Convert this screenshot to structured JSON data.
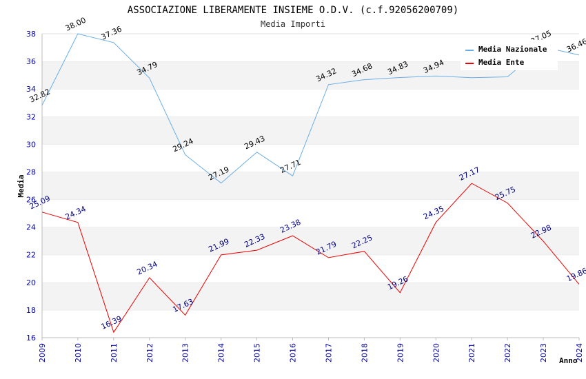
{
  "chart_data": {
    "type": "line",
    "title": "ASSOCIAZIONE LIBERAMENTE INSIEME O.D.V. (c.f.92056200709)",
    "subtitle": "Media Importi",
    "xlabel": "Anno",
    "ylabel": "Media",
    "categories": [
      "2009",
      "2010",
      "2011",
      "2012",
      "2013",
      "2014",
      "2015",
      "2016",
      "2017",
      "2018",
      "2019",
      "2020",
      "2021",
      "2022",
      "2023",
      "2024"
    ],
    "ylim": [
      16,
      38
    ],
    "yticks": [
      "16",
      "18",
      "20",
      "22",
      "24",
      "26",
      "28",
      "30",
      "32",
      "34",
      "36",
      "38"
    ],
    "grid": "horizontal bands",
    "legend_position": "top-right",
    "series": [
      {
        "name": "Media Nazionale",
        "color": "#6aaee6",
        "label_color": "#000000",
        "values": [
          32.82,
          38.0,
          37.36,
          34.79,
          29.24,
          27.19,
          29.43,
          27.71,
          34.32,
          34.68,
          34.83,
          34.94,
          34.82,
          34.88,
          37.05,
          36.46
        ],
        "labels": [
          "32.82",
          "38.00",
          "37.36",
          "34.79",
          "29.24",
          "27.19",
          "29.43",
          "27.71",
          "34.32",
          "34.68",
          "34.83",
          "34.94",
          "",
          "",
          "37.05",
          "36.46"
        ]
      },
      {
        "name": "Media Ente",
        "color": "#ee0000",
        "label_color": "#000080",
        "values": [
          25.09,
          24.34,
          16.39,
          20.34,
          17.63,
          21.99,
          22.33,
          23.38,
          21.79,
          22.25,
          19.26,
          24.35,
          27.17,
          25.75,
          22.98,
          19.86
        ],
        "labels": [
          "25.09",
          "24.34",
          "16.39",
          "20.34",
          "17.63",
          "21.99",
          "22.33",
          "23.38",
          "21.79",
          "22.25",
          "19.26",
          "24.35",
          "27.17",
          "25.75",
          "22.98",
          "19.86"
        ]
      }
    ]
  }
}
